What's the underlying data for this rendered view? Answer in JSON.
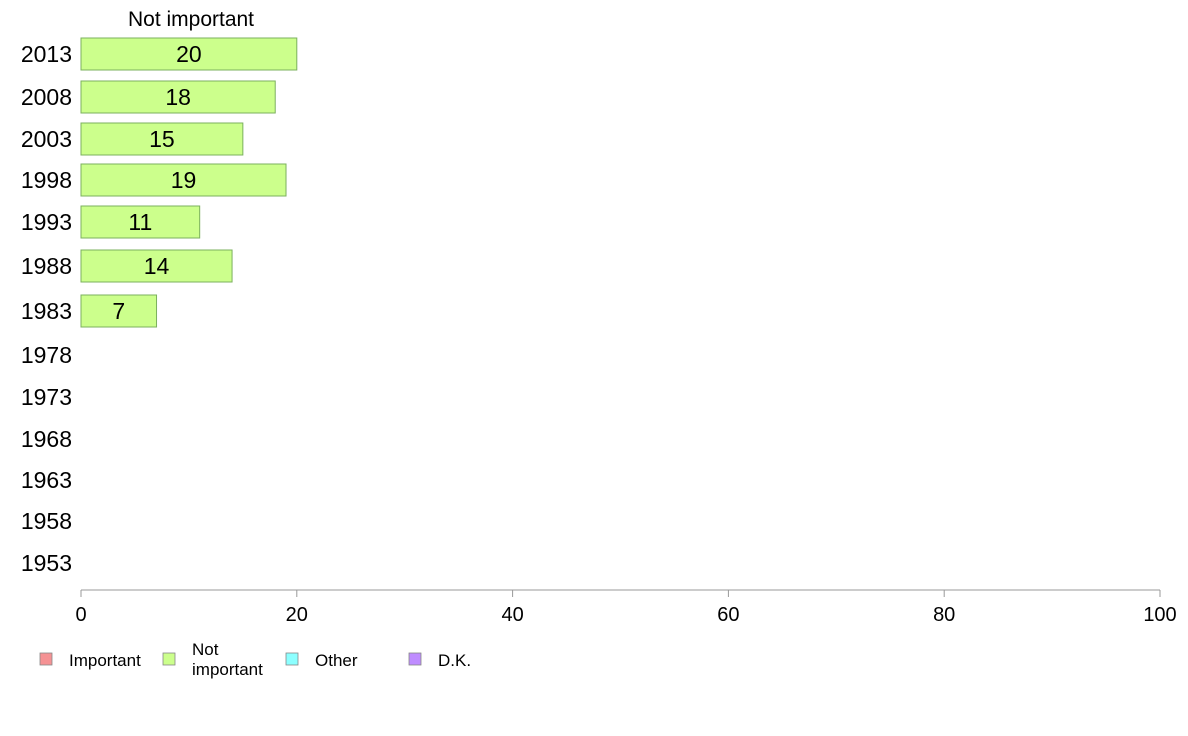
{
  "chart_data": {
    "type": "bar",
    "orientation": "horizontal",
    "title": "Not important",
    "categories": [
      "2013",
      "2008",
      "2003",
      "1998",
      "1993",
      "1988",
      "1983",
      "1978",
      "1973",
      "1968",
      "1963",
      "1958",
      "1953"
    ],
    "series": [
      {
        "name": "Not important",
        "color": "#ccff8c",
        "values": [
          20,
          18,
          15,
          19,
          11,
          14,
          7,
          null,
          null,
          null,
          null,
          null,
          null
        ]
      }
    ],
    "xlim": [
      0,
      100
    ],
    "xticks": [
      "0",
      "20",
      "40",
      "60",
      "80",
      "100"
    ],
    "xlabel": "",
    "ylabel": "",
    "grid": false,
    "legend": {
      "placement": "bottom-left",
      "items": [
        {
          "label": "Important",
          "color": "#f59294"
        },
        {
          "label": "Not important",
          "label_lines": [
            "Not",
            "important"
          ],
          "color": "#ccff8c"
        },
        {
          "label": "Other",
          "color": "#8cffff"
        },
        {
          "label": "D.K.",
          "color": "#bf8cff"
        }
      ]
    }
  }
}
